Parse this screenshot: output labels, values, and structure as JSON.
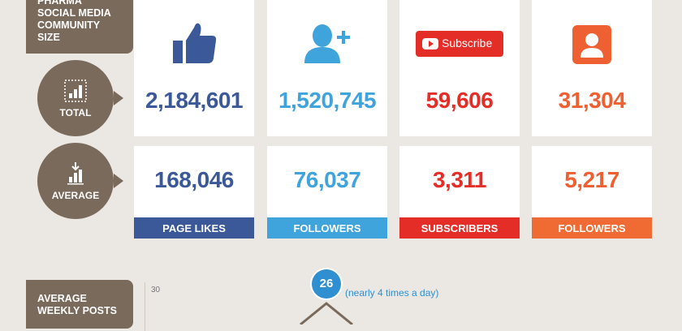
{
  "header": {
    "title_lines": [
      "PHARMA",
      "SOCIAL MEDIA",
      "COMMUNITY",
      "SIZE"
    ]
  },
  "rows": {
    "total": {
      "label": "TOTAL"
    },
    "average": {
      "label": "AVERAGE"
    }
  },
  "columns": [
    {
      "platform": "facebook",
      "icon": "thumbs-up-icon",
      "total": "2,184,601",
      "average": "168,046",
      "label": "PAGE LIKES",
      "color": "#3b5998",
      "band": "#3b5998"
    },
    {
      "platform": "twitter",
      "icon": "add-user-icon",
      "total": "1,520,745",
      "average": "76,037",
      "label": "FOLLOWERS",
      "color": "#3fa3dc",
      "band": "#3fa3dc"
    },
    {
      "platform": "youtube",
      "icon": "subscribe-button-icon",
      "subscribe_text": "Subscribe",
      "total": "59,606",
      "average": "3,311",
      "label": "SUBSCRIBERS",
      "color": "#e52d27",
      "band": "#e52d27"
    },
    {
      "platform": "google-plus",
      "icon": "profile-icon",
      "total": "31,304",
      "average": "5,217",
      "label": "FOLLOWERS",
      "color": "#ee5f32",
      "band": "#f06a33"
    }
  ],
  "weekly": {
    "title_lines": [
      "AVERAGE",
      "WEEKLY POSTS"
    ],
    "axis_tick": "30",
    "peak_value": "26",
    "peak_note": "(nearly 4 times a day)",
    "accent": "#2f8fd0"
  }
}
